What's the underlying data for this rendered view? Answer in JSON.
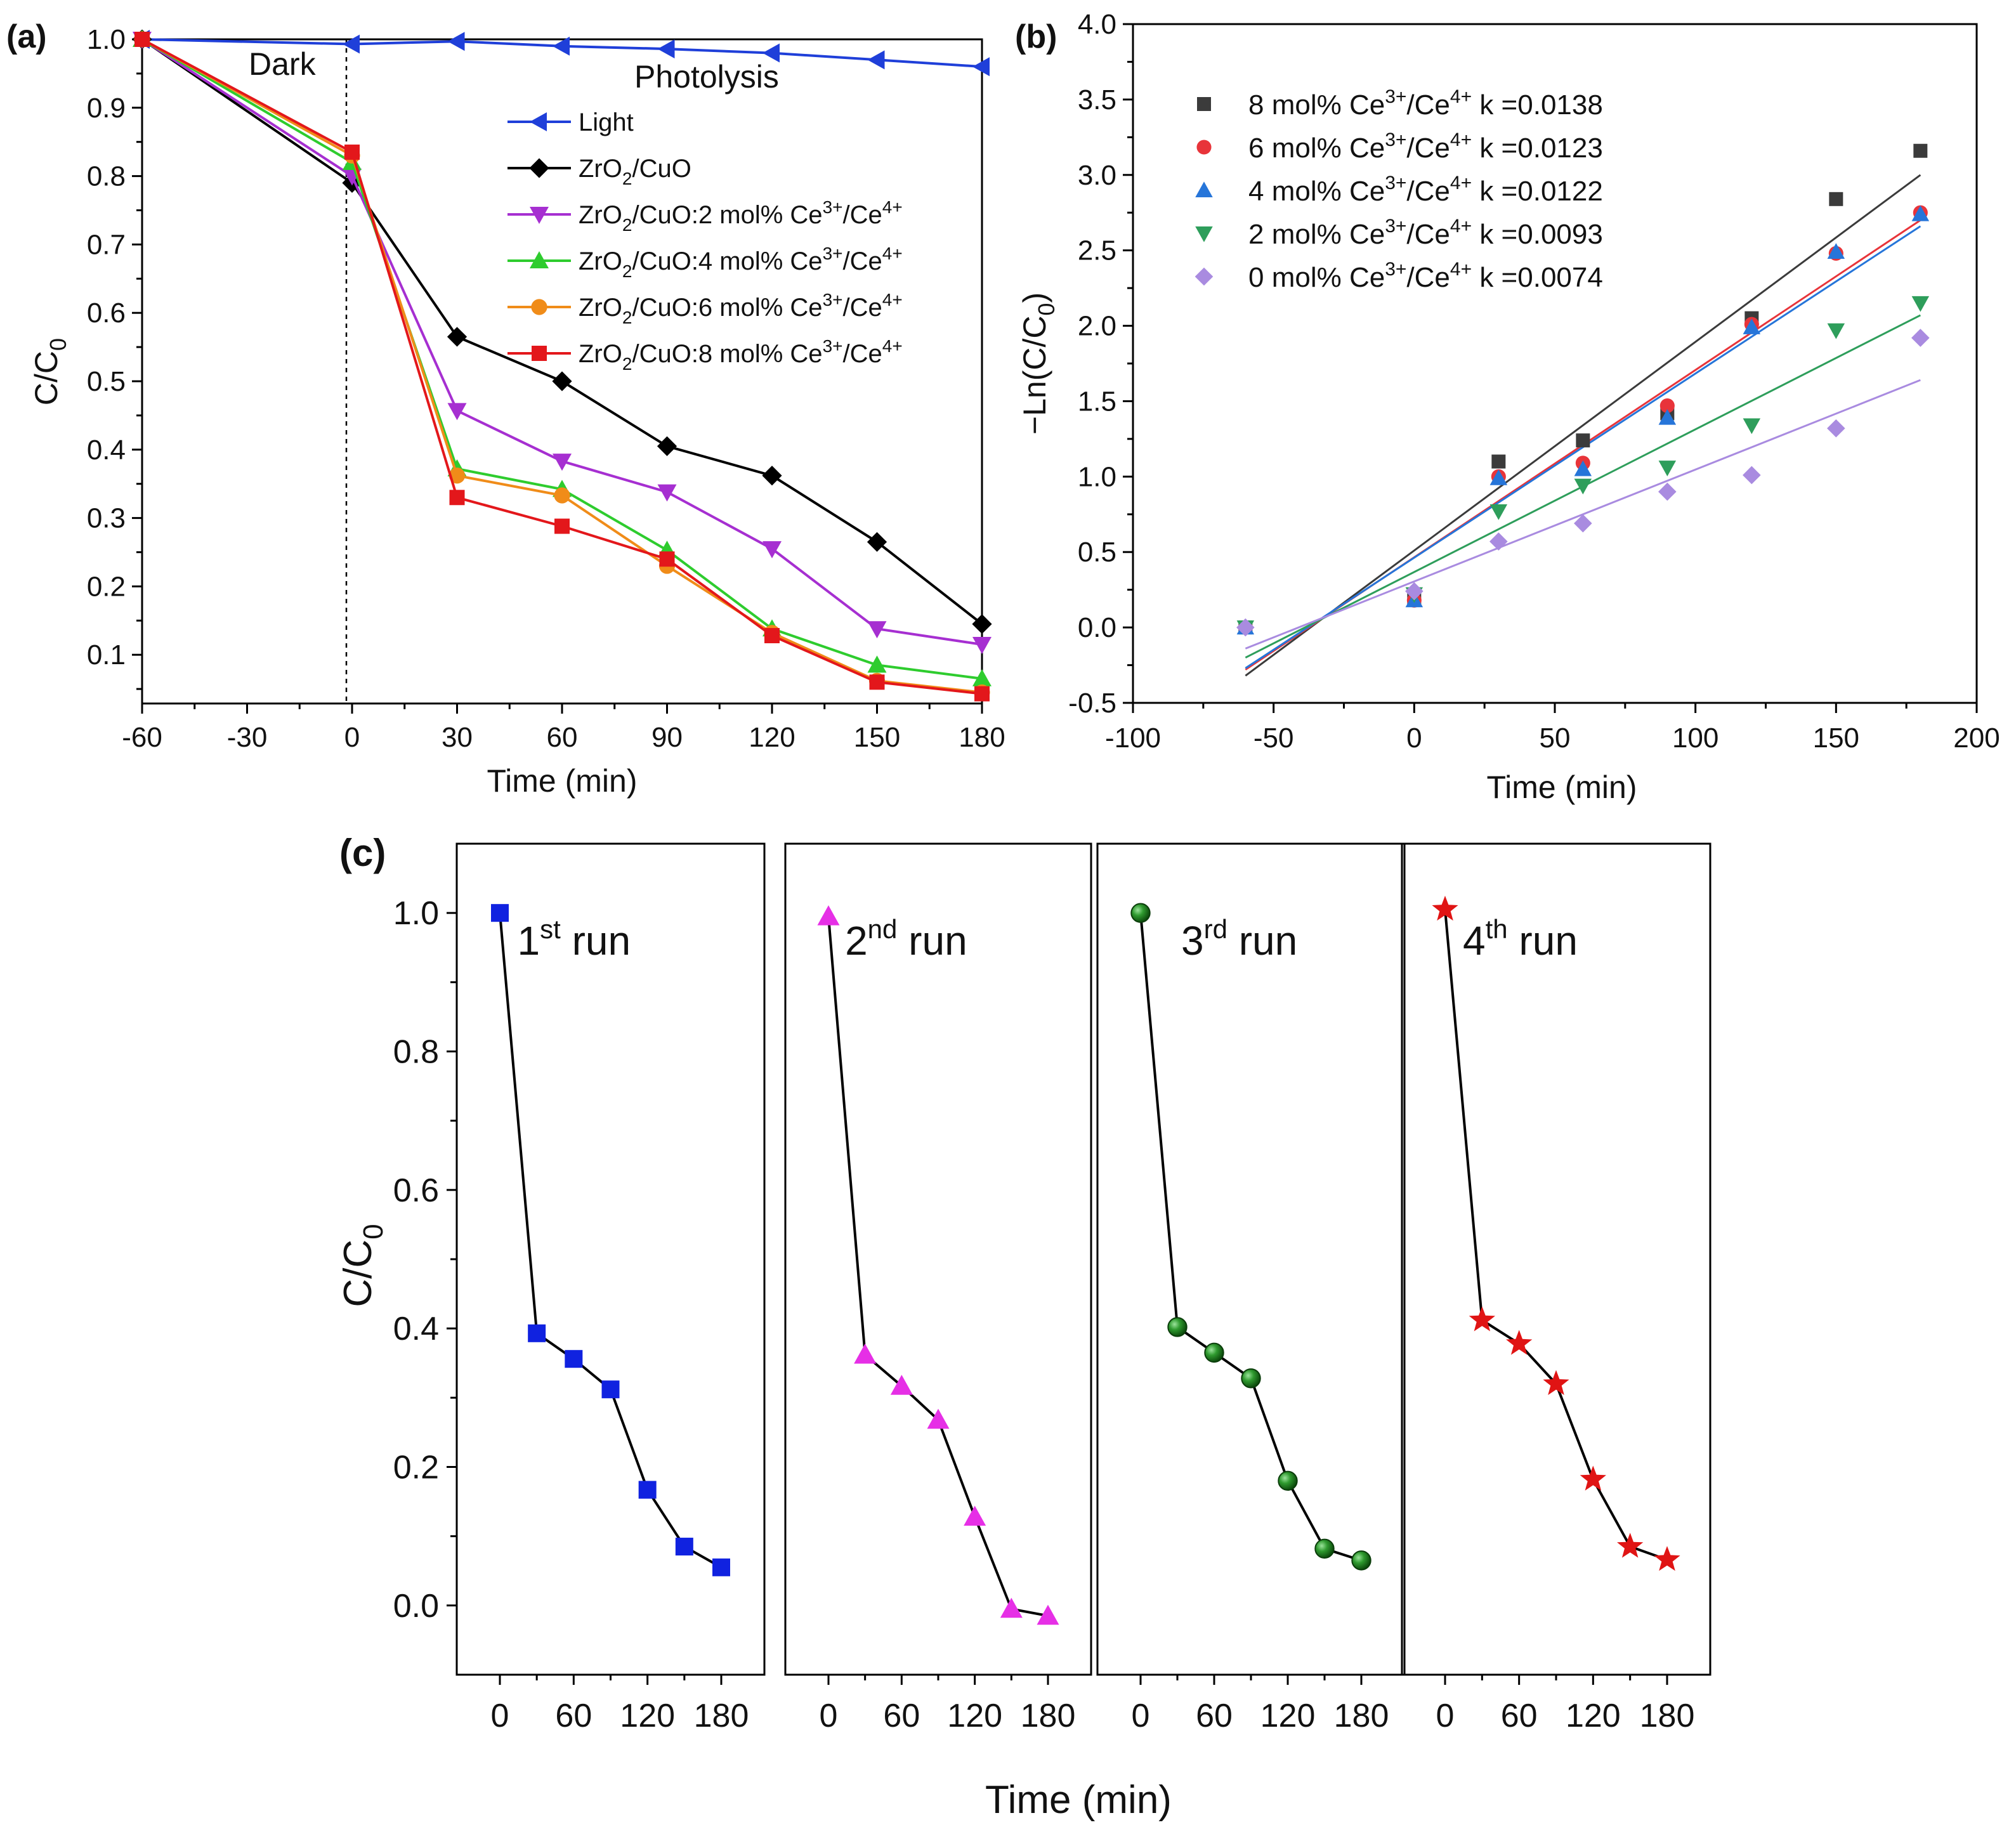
{
  "chart_data": [
    {
      "panel": "(a)",
      "type": "line",
      "xlabel": "Time (min)",
      "ylabel": "C/C",
      "ylabel_sub": "0",
      "x_ticks": [
        "-60",
        "-30",
        "0",
        "30",
        "60",
        "90",
        "120",
        "150",
        "180"
      ],
      "y_ticks": [
        "0.1",
        "0.2",
        "0.3",
        "0.4",
        "0.5",
        "0.6",
        "0.7",
        "0.8",
        "0.9",
        "1.0"
      ],
      "xlim": [
        -60,
        180
      ],
      "ylim": [
        0.03,
        1.0
      ],
      "annotations": {
        "dark": "Dark",
        "photolysis": "Photolysis"
      },
      "annotation_colors": {
        "dark": "#111111",
        "photolysis": "#f0922b"
      },
      "x": [
        -60,
        0,
        30,
        60,
        90,
        120,
        150,
        180
      ],
      "series": [
        {
          "name": "Light",
          "label_parts": [
            "Light"
          ],
          "color": "#1f3fd9",
          "marker": "triangle-left",
          "values": [
            1.0,
            0.993,
            0.997,
            0.99,
            0.986,
            0.98,
            0.97,
            0.96
          ]
        },
        {
          "name": "ZrO2/CuO",
          "label_parts": [
            "ZrO",
            "2",
            "/CuO"
          ],
          "color": "#000000",
          "marker": "diamond",
          "values": [
            1.0,
            0.79,
            0.565,
            0.5,
            0.405,
            0.362,
            0.265,
            0.145
          ]
        },
        {
          "name": "ZrO2/CuO:2 mol% Ce3+/Ce4+",
          "label_parts": [
            "ZrO",
            "2",
            "/CuO:2 mol% Ce",
            "3+",
            "/Ce",
            "4+"
          ],
          "color": "#a62fd1",
          "marker": "triangle-down",
          "values": [
            1.0,
            0.8,
            0.457,
            0.383,
            0.338,
            0.255,
            0.138,
            0.115
          ]
        },
        {
          "name": "ZrO2/CuO:4 mol% Ce3+/Ce4+",
          "label_parts": [
            "ZrO",
            "2",
            "/CuO:4 mol% Ce",
            "3+",
            "/Ce",
            "4+"
          ],
          "color": "#2ecc2e",
          "marker": "triangle-up",
          "values": [
            1.0,
            0.82,
            0.372,
            0.342,
            0.253,
            0.138,
            0.085,
            0.065
          ]
        },
        {
          "name": "ZrO2/CuO:6 mol% Ce3+/Ce4+",
          "label_parts": [
            "ZrO",
            "2",
            "/CuO:6 mol% Ce",
            "3+",
            "/Ce",
            "4+"
          ],
          "color": "#f08c19",
          "marker": "circle",
          "values": [
            1.0,
            0.83,
            0.362,
            0.333,
            0.23,
            0.132,
            0.062,
            0.045
          ]
        },
        {
          "name": "ZrO2/CuO:8 mol% Ce3+/Ce4+",
          "label_parts": [
            "ZrO",
            "2",
            "/CuO:8 mol% Ce",
            "3+",
            "/Ce",
            "4+"
          ],
          "color": "#e3171b",
          "marker": "square",
          "values": [
            1.0,
            0.835,
            0.33,
            0.288,
            0.24,
            0.128,
            0.06,
            0.043
          ]
        }
      ]
    },
    {
      "panel": "(b)",
      "type": "scatter",
      "xlabel": "Time (min)",
      "ylabel": "−Ln(C/C",
      "ylabel_sub": "0",
      "ylabel_end": ")",
      "x_ticks": [
        "-100",
        "-50",
        "0",
        "50",
        "100",
        "150",
        "200"
      ],
      "y_ticks": [
        "-0.5",
        "0.0",
        "0.5",
        "1.0",
        "1.5",
        "2.0",
        "2.5",
        "3.0",
        "3.5",
        "4.0"
      ],
      "xlim": [
        -100,
        200
      ],
      "ylim": [
        -0.5,
        4.0
      ],
      "x": [
        -60,
        0,
        30,
        60,
        90,
        120,
        150,
        180
      ],
      "series": [
        {
          "name": "8 mol% Ce3+/Ce4+",
          "label_parts": [
            "8 mol% Ce",
            "3+",
            "/Ce",
            "4+",
            " k =0.0138"
          ],
          "color": "#3b3b3b",
          "line_color": "#3b3b3b",
          "marker": "square",
          "values": [
            0.0,
            0.19,
            1.1,
            1.24,
            1.42,
            2.05,
            2.84,
            3.16
          ],
          "fit_at_xmin": -0.32,
          "fit_at_xmax": 3.0
        },
        {
          "name": "6 mol% Ce3+/Ce4+",
          "label_parts": [
            "6 mol% Ce",
            "3+",
            "/Ce",
            "4+",
            " k =0.0123"
          ],
          "color": "#e8343a",
          "line_color": "#e8343a",
          "marker": "circle",
          "values": [
            0.0,
            0.18,
            1.0,
            1.09,
            1.47,
            2.01,
            2.48,
            2.75
          ],
          "fit_at_xmin": -0.28,
          "fit_at_xmax": 2.7
        },
        {
          "name": "4 mol% Ce3+/Ce4+",
          "label_parts": [
            "4 mol% Ce",
            "3+",
            "/Ce",
            "4+",
            " k =0.0122"
          ],
          "color": "#2675d9",
          "line_color": "#2675d9",
          "marker": "triangle-up",
          "values": [
            0.0,
            0.18,
            0.99,
            1.05,
            1.39,
            1.99,
            2.49,
            2.74
          ],
          "fit_at_xmin": -0.27,
          "fit_at_xmax": 2.66
        },
        {
          "name": "2 mol% Ce3+/Ce4+",
          "label_parts": [
            "2 mol% Ce",
            "3+",
            "/Ce",
            "4+",
            " k =0.0093"
          ],
          "color": "#2e9e5b",
          "line_color": "#2e9e5b",
          "marker": "triangle-down",
          "values": [
            0.0,
            0.22,
            0.77,
            0.94,
            1.06,
            1.34,
            1.97,
            2.15
          ],
          "fit_at_xmin": -0.2,
          "fit_at_xmax": 2.07
        },
        {
          "name": "0 mol% Ce3+/Ce4+",
          "label_parts": [
            "0 mol% Ce",
            "3+",
            "/Ce",
            "4+",
            " k =0.0074"
          ],
          "color": "#a98be0",
          "line_color": "#a98be0",
          "marker": "diamond",
          "values": [
            0.0,
            0.24,
            0.57,
            0.69,
            0.9,
            1.01,
            1.32,
            1.92
          ],
          "fit_at_xmin": -0.14,
          "fit_at_xmax": 1.64
        }
      ]
    },
    {
      "panel": "(c)",
      "type": "line",
      "xlabel": "Time (min)",
      "ylabel": "C/C",
      "ylabel_sub": "0",
      "x_ticks": [
        "0",
        "60",
        "120",
        "180"
      ],
      "y_ticks": [
        "0.0",
        "0.2",
        "0.4",
        "0.6",
        "0.8",
        "1.0"
      ],
      "ylim": [
        -0.1,
        1.1
      ],
      "x": [
        0,
        30,
        60,
        90,
        120,
        150,
        180
      ],
      "runs": [
        {
          "name": "1st run",
          "label_main": "1",
          "label_sup": "st",
          "label_end": " run",
          "color": "#1022e0",
          "marker": "square",
          "values": [
            1.0,
            0.393,
            0.356,
            0.312,
            0.167,
            0.085,
            0.055
          ]
        },
        {
          "name": "2nd run",
          "label_main": "2",
          "label_sup": "nd",
          "label_end": " run",
          "color": "#e62fe6",
          "marker": "triangle-up",
          "values": [
            0.995,
            0.362,
            0.317,
            0.268,
            0.128,
            -0.005,
            -0.015
          ]
        },
        {
          "name": "3rd run",
          "label_main": "3",
          "label_sup": "rd",
          "label_end": " run",
          "color": "#1f8a1f",
          "marker": "sphere",
          "values": [
            1.0,
            0.402,
            0.365,
            0.328,
            0.18,
            0.082,
            0.065
          ]
        },
        {
          "name": "4th run",
          "label_main": "4",
          "label_sup": "th",
          "label_end": " run",
          "color": "#e01414",
          "marker": "star",
          "values": [
            1.005,
            0.412,
            0.378,
            0.32,
            0.182,
            0.085,
            0.066
          ]
        }
      ]
    }
  ]
}
